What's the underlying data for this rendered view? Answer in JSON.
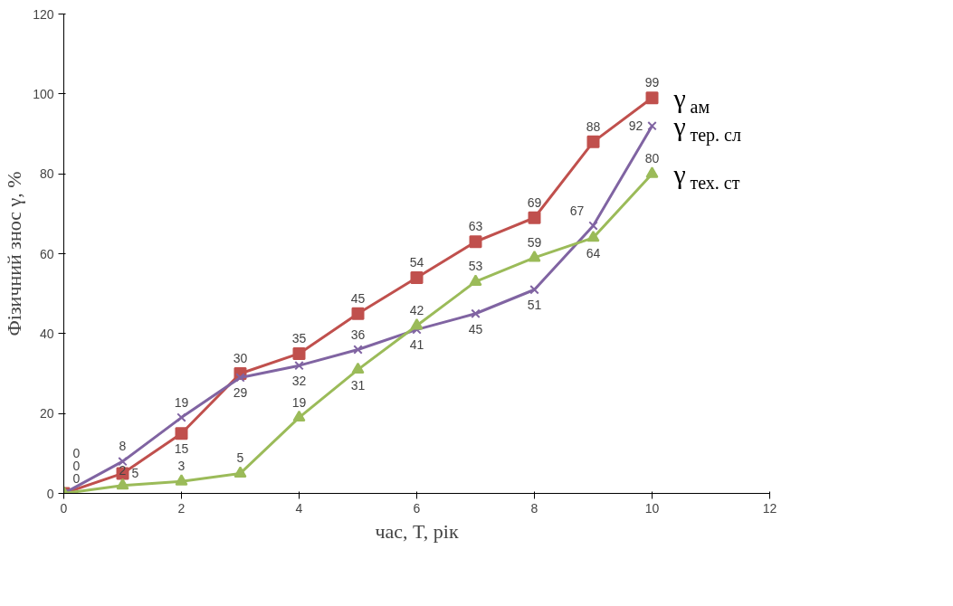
{
  "chart_data": {
    "type": "line",
    "xlabel": "час, T, рік",
    "ylabel": "Фізичний знос γ, %",
    "x": [
      0,
      1,
      2,
      3,
      4,
      5,
      6,
      7,
      8,
      9,
      10
    ],
    "series": [
      {
        "name": "γ$_{ам}$",
        "color": "#c0504d",
        "marker": "square",
        "values": [
          0,
          5,
          15,
          30,
          35,
          45,
          54,
          63,
          69,
          88,
          99
        ]
      },
      {
        "name": "γ$_{тер. сл}$",
        "color": "#8064a2",
        "marker": "cross",
        "values": [
          0,
          8,
          19,
          29,
          32,
          36,
          41,
          45,
          51,
          67,
          92
        ]
      },
      {
        "name": "γ$_{тех. ст}$",
        "color": "#9bbb59",
        "marker": "triangle",
        "values": [
          0,
          2,
          3,
          5,
          19,
          31,
          42,
          53,
          59,
          64,
          80
        ]
      }
    ],
    "xlim": [
      0,
      12
    ],
    "xticks": [
      0,
      2,
      4,
      6,
      8,
      10,
      12
    ],
    "ylim": [
      0,
      120
    ],
    "yticks": [
      0,
      20,
      40,
      60,
      80,
      100,
      120
    ],
    "data_labels": true,
    "grid": false,
    "legend": false,
    "line_style": "solid"
  }
}
